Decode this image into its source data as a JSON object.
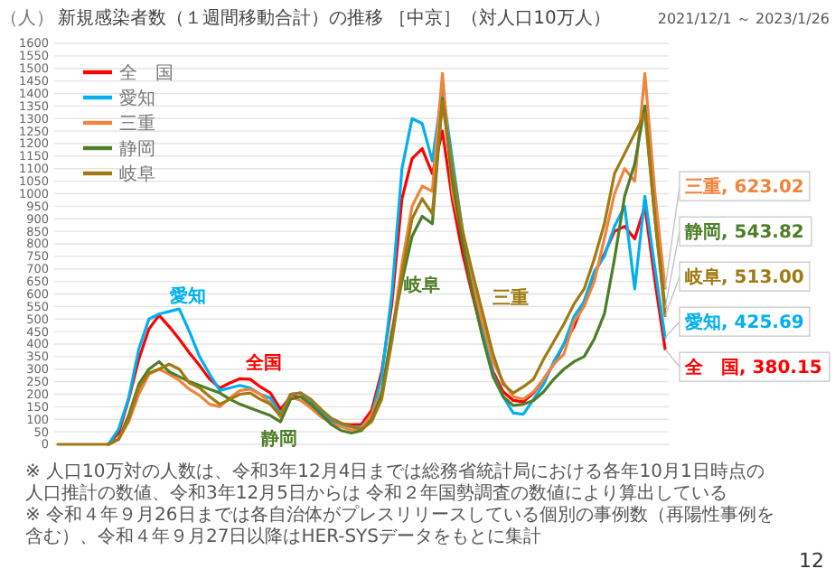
{
  "chart_data": {
    "type": "line",
    "title": "新規感染者数（１週間移動合計）の推移 ［中京］（対人口10万人）",
    "subtitle": "2021/12/1 ～ 2023/1/26",
    "ylabel": "（人）",
    "categories": [
      null,
      null,
      null,
      null,
      null,
      null,
      null,
      null,
      null,
      null,
      null,
      null,
      null,
      null,
      null,
      null,
      null,
      null,
      null,
      null,
      null,
      null,
      null,
      null,
      null,
      null,
      null,
      null,
      null,
      null,
      null,
      null,
      null,
      null,
      null,
      null,
      null,
      null,
      null,
      null,
      null,
      null,
      null,
      null,
      null,
      null,
      null,
      null,
      null,
      null,
      null,
      null,
      null,
      null,
      null,
      null,
      null,
      null,
      null,
      null,
      null
    ],
    "ylim": [
      0,
      1600
    ],
    "yticks": [
      0,
      50,
      100,
      150,
      200,
      250,
      300,
      350,
      400,
      450,
      500,
      550,
      600,
      650,
      700,
      750,
      800,
      850,
      900,
      950,
      1000,
      1050,
      1100,
      1150,
      1200,
      1250,
      1300,
      1350,
      1400,
      1450,
      1500,
      1550,
      1600
    ],
    "grid": "y",
    "legend": "top left",
    "marker": "none",
    "line_style": "solid",
    "tick_labels": "y",
    "series": [
      {
        "name": "全　国",
        "color": "#ff0000",
        "values": [
          null,
          null,
          null,
          null,
          null,
          0,
          45,
          180,
          340,
          460,
          515,
          470,
          420,
          365,
          315,
          260,
          225,
          245,
          262,
          260,
          230,
          205,
          140,
          190,
          190,
          160,
          120,
          92,
          82,
          78,
          80,
          135,
          290,
          560,
          980,
          1140,
          1180,
          1080,
          1250,
          970,
          760,
          590,
          430,
          290,
          210,
          175,
          170,
          205,
          260,
          320,
          400,
          470,
          570,
          680,
          760,
          850,
          870,
          820,
          950,
          650,
          380.15
        ],
        "value_labels": [
          null,
          null,
          null,
          null,
          null,
          null,
          null,
          null,
          null,
          null,
          null,
          null,
          null,
          null,
          null,
          null,
          null,
          null,
          null,
          null,
          null,
          null,
          null,
          null,
          null,
          null,
          null,
          null,
          null,
          null,
          null,
          null,
          null,
          null,
          null,
          null,
          null,
          null,
          null,
          null,
          null,
          null,
          null,
          null,
          null,
          null,
          null,
          null,
          null,
          null,
          null,
          null,
          null,
          null,
          null,
          null,
          null,
          null,
          null,
          null,
          "全　国, 380.15"
        ]
      },
      {
        "name": "愛知",
        "color": "#00b0f0",
        "values": [
          null,
          null,
          null,
          null,
          null,
          0,
          60,
          185,
          380,
          500,
          520,
          530,
          540,
          450,
          350,
          280,
          215,
          225,
          235,
          225,
          200,
          185,
          120,
          200,
          205,
          175,
          130,
          100,
          80,
          70,
          70,
          115,
          270,
          600,
          1100,
          1300,
          1280,
          1130,
          1420,
          1130,
          850,
          630,
          450,
          280,
          190,
          125,
          120,
          180,
          240,
          330,
          400,
          510,
          570,
          690,
          750,
          870,
          950,
          620,
          990,
          700,
          425.69
        ],
        "value_labels": [
          null,
          null,
          null,
          null,
          null,
          null,
          null,
          null,
          null,
          null,
          null,
          null,
          null,
          null,
          null,
          null,
          null,
          null,
          null,
          null,
          null,
          null,
          null,
          null,
          null,
          null,
          null,
          null,
          null,
          null,
          null,
          null,
          null,
          null,
          null,
          null,
          null,
          null,
          null,
          null,
          null,
          null,
          null,
          null,
          null,
          null,
          null,
          null,
          null,
          null,
          null,
          null,
          null,
          null,
          null,
          null,
          null,
          null,
          null,
          null,
          "愛知, 425.69"
        ]
      },
      {
        "name": "三重",
        "color": "#f0843c",
        "values": [
          null,
          null,
          null,
          null,
          null,
          0,
          20,
          90,
          200,
          280,
          300,
          280,
          255,
          220,
          195,
          160,
          150,
          185,
          215,
          220,
          200,
          165,
          110,
          190,
          175,
          145,
          110,
          85,
          70,
          57,
          65,
          120,
          215,
          430,
          720,
          950,
          1030,
          1010,
          1480,
          1000,
          820,
          640,
          480,
          330,
          250,
          190,
          180,
          210,
          260,
          320,
          360,
          490,
          550,
          650,
          820,
          1000,
          1100,
          1050,
          1480,
          1000,
          623.02
        ],
        "value_labels": [
          null,
          null,
          null,
          null,
          null,
          null,
          null,
          null,
          null,
          null,
          null,
          null,
          null,
          null,
          null,
          null,
          null,
          null,
          null,
          null,
          null,
          null,
          null,
          null,
          null,
          null,
          null,
          null,
          null,
          null,
          null,
          null,
          null,
          null,
          null,
          null,
          null,
          null,
          null,
          null,
          null,
          null,
          null,
          null,
          null,
          null,
          null,
          null,
          null,
          null,
          null,
          null,
          null,
          null,
          null,
          null,
          null,
          null,
          null,
          null,
          "三重, 623.02"
        ]
      },
      {
        "name": "静岡",
        "color": "#4e7e28",
        "values": [
          null,
          null,
          null,
          null,
          null,
          0,
          20,
          115,
          240,
          300,
          330,
          290,
          270,
          250,
          235,
          220,
          205,
          180,
          160,
          145,
          130,
          115,
          90,
          180,
          190,
          160,
          120,
          80,
          55,
          45,
          55,
          100,
          200,
          450,
          650,
          830,
          910,
          880,
          1380,
          1050,
          800,
          600,
          420,
          270,
          190,
          155,
          160,
          175,
          210,
          260,
          300,
          330,
          350,
          420,
          520,
          740,
          990,
          1120,
          1350,
          900,
          543.82
        ],
        "value_labels": [
          null,
          null,
          null,
          null,
          null,
          null,
          null,
          null,
          null,
          null,
          null,
          null,
          null,
          null,
          null,
          null,
          null,
          null,
          null,
          null,
          null,
          null,
          null,
          null,
          null,
          null,
          null,
          null,
          null,
          null,
          null,
          null,
          null,
          null,
          null,
          null,
          null,
          null,
          null,
          null,
          null,
          null,
          null,
          null,
          null,
          null,
          null,
          null,
          null,
          null,
          null,
          null,
          null,
          null,
          null,
          null,
          null,
          null,
          null,
          null,
          "静岡, 543.82"
        ]
      },
      {
        "name": "岐阜",
        "color": "#a07a12",
        "values": [
          0,
          0,
          0,
          0,
          0,
          0,
          20,
          100,
          225,
          285,
          300,
          320,
          300,
          245,
          225,
          190,
          160,
          180,
          200,
          205,
          180,
          160,
          115,
          200,
          205,
          180,
          140,
          105,
          85,
          72,
          60,
          90,
          180,
          410,
          680,
          900,
          980,
          920,
          1370,
          1100,
          850,
          680,
          520,
          360,
          240,
          205,
          230,
          260,
          340,
          410,
          480,
          560,
          620,
          740,
          880,
          1080,
          1160,
          1240,
          1320,
          900,
          513
        ],
        "value_labels": [
          null,
          null,
          null,
          null,
          null,
          null,
          null,
          null,
          null,
          null,
          null,
          null,
          null,
          null,
          null,
          null,
          null,
          null,
          null,
          null,
          null,
          null,
          null,
          null,
          null,
          null,
          null,
          null,
          null,
          null,
          null,
          null,
          null,
          null,
          null,
          null,
          null,
          null,
          null,
          null,
          null,
          null,
          null,
          null,
          null,
          null,
          null,
          null,
          null,
          null,
          null,
          null,
          null,
          null,
          null,
          null,
          null,
          null,
          null,
          null,
          "岐阜, 513.00"
        ]
      }
    ],
    "annotations": [
      "愛知",
      "全国",
      "静岡",
      "岐阜",
      "三重",
      "※ 人口10万対の人数は、令和3年12月4日までは総務省統計局における各年10月1日時点の人口推計の数値、令和3年12月5日からは 令和２年国勢調査の数値により算出している",
      "※ 令和４年９月26日までは各自治体がプレスリリースしている個別の事例数（再陽性事例を含む）、令和４年９月27日以降はHER-SYSデータをもとに集計",
      "12"
    ]
  }
}
